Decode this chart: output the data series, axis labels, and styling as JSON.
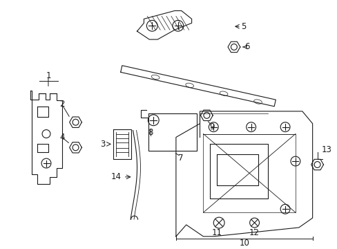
{
  "background_color": "#ffffff",
  "line_color": "#1a1a1a",
  "figsize": [
    4.89,
    3.6
  ],
  "dpi": 100,
  "parts": {
    "pillar_outline": {
      "x": [
        0.045,
        0.045,
        0.065,
        0.065,
        0.085,
        0.085,
        0.095,
        0.095,
        0.115,
        0.115,
        0.125,
        0.125,
        0.145,
        0.145,
        0.115,
        0.115,
        0.075,
        0.075,
        0.055,
        0.055,
        0.045
      ],
      "y": [
        0.71,
        0.8,
        0.8,
        0.825,
        0.825,
        0.81,
        0.81,
        0.825,
        0.825,
        0.8,
        0.8,
        0.565,
        0.565,
        0.545,
        0.545,
        0.525,
        0.525,
        0.545,
        0.545,
        0.71,
        0.71
      ]
    }
  }
}
